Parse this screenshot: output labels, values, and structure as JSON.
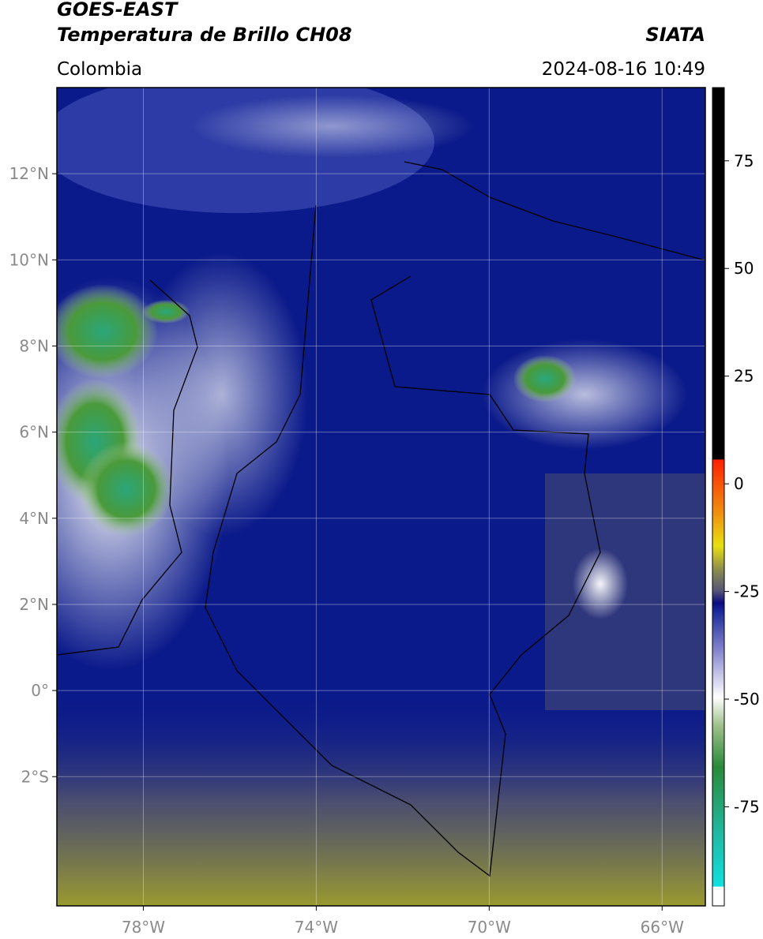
{
  "header": {
    "title_line1": "GOES-EAST",
    "title_line2": "Temperatura de Brillo CH08",
    "source": "SIATA",
    "subtitle": "Colombia",
    "datetime": "2024-08-16 10:49"
  },
  "map": {
    "xlim": [
      -80,
      -65
    ],
    "ylim": [
      -5,
      14
    ],
    "xticks": [
      {
        "value": -78,
        "label": "78°W"
      },
      {
        "value": -74,
        "label": "74°W"
      },
      {
        "value": -70,
        "label": "70°W"
      },
      {
        "value": -66,
        "label": "66°W"
      }
    ],
    "yticks": [
      {
        "value": -2,
        "label": "2°S"
      },
      {
        "value": 0,
        "label": "0°"
      },
      {
        "value": 2,
        "label": "2°N"
      },
      {
        "value": 4,
        "label": "4°N"
      },
      {
        "value": 6,
        "label": "6°N"
      },
      {
        "value": 8,
        "label": "8°N"
      },
      {
        "value": 10,
        "label": "10°N"
      },
      {
        "value": 12,
        "label": "12°N"
      }
    ],
    "grid": true
  },
  "colorbar": {
    "lim": [
      -98,
      92
    ],
    "ticks": [
      -75,
      -50,
      -25,
      0,
      25,
      50,
      75
    ]
  }
}
